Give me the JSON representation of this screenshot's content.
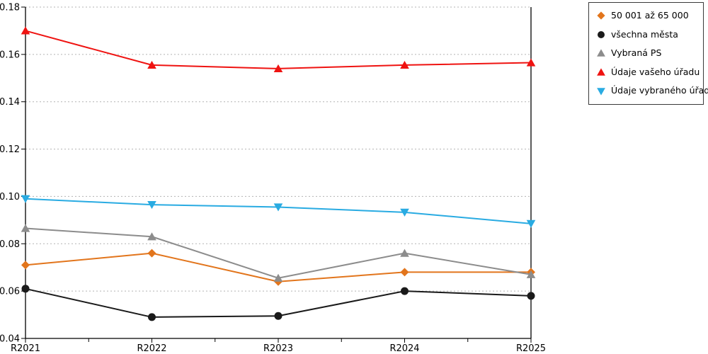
{
  "chart_data": {
    "type": "line",
    "title": "",
    "xlabel": "",
    "ylabel": "",
    "categories": [
      "R2021",
      "R2022",
      "R2023",
      "R2024",
      "R2025"
    ],
    "series": [
      {
        "name": "50 001 až 65 000",
        "marker": "diamond",
        "color": "#E2751C",
        "values": [
          0.071,
          0.076,
          0.064,
          0.068,
          0.068
        ]
      },
      {
        "name": "všechna města",
        "marker": "circle",
        "color": "#1A1A1A",
        "values": [
          0.061,
          0.049,
          0.0495,
          0.06,
          0.058
        ]
      },
      {
        "name": "Vybraná PS",
        "marker": "triangle-up",
        "color": "#8C8C8C",
        "values": [
          0.0865,
          0.083,
          0.0655,
          0.076,
          0.067
        ]
      },
      {
        "name": "Údaje vašeho úřadu",
        "marker": "triangle-up",
        "color": "#EF1311",
        "values": [
          0.17,
          0.1555,
          0.154,
          0.1555,
          0.1565
        ]
      },
      {
        "name": "Údaje vybraného úřadu",
        "marker": "triangle-down",
        "color": "#29ABE2",
        "values": [
          0.099,
          0.0965,
          0.0955,
          0.0933,
          0.0885
        ]
      }
    ],
    "ylim": [
      0.04,
      0.18
    ],
    "ytick_step": 0.02,
    "ytick_labels": [
      "0.04",
      "0.06",
      "0.08",
      "0.10",
      "0.12",
      "0.14",
      "0.16",
      "0.18"
    ],
    "grid": "horizontal-dashed",
    "legend_position": "top-right",
    "colors": {
      "grid": "#B3B3B3",
      "axis": "#000000",
      "background": "#FFFFFF"
    }
  }
}
